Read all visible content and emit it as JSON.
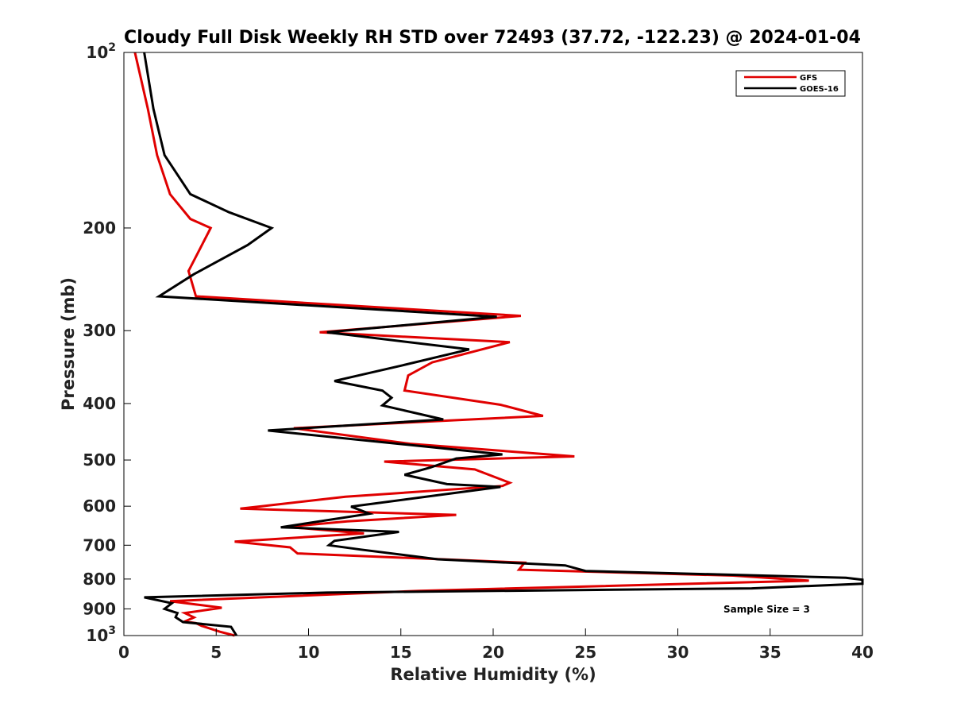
{
  "chart_data": {
    "type": "line",
    "title": "Cloudy Full Disk Weekly RH STD over 72493 (37.72, -122.23) @ 2024-01-04",
    "xlabel": "Relative Humidity (%)",
    "ylabel": "Pressure (mb)",
    "xlim": [
      0,
      40
    ],
    "ylim": [
      100,
      1000
    ],
    "y_scale": "log",
    "y_reversed": true,
    "grid": false,
    "legend_position": "top-right",
    "x_ticks": [
      "0",
      "5",
      "10",
      "15",
      "20",
      "25",
      "30",
      "35",
      "40"
    ],
    "y_ticks": [
      {
        "value": 100,
        "base": "10",
        "exp": "2"
      },
      {
        "value": 200,
        "label": "200"
      },
      {
        "value": 300,
        "label": "300"
      },
      {
        "value": 400,
        "label": "400"
      },
      {
        "value": 500,
        "label": "500"
      },
      {
        "value": 600,
        "label": "600"
      },
      {
        "value": 700,
        "label": "700"
      },
      {
        "value": 800,
        "label": "800"
      },
      {
        "value": 900,
        "label": "900"
      },
      {
        "value": 1000,
        "base": "10",
        "exp": "3"
      }
    ],
    "annotation": "Sample Size = 3",
    "series": [
      {
        "name": "GFS",
        "color": "#e00000",
        "points": [
          [
            0.6,
            100
          ],
          [
            1.3,
            125
          ],
          [
            1.8,
            150
          ],
          [
            2.5,
            175
          ],
          [
            3.6,
            193
          ],
          [
            4.7,
            200
          ],
          [
            3.5,
            237
          ],
          [
            3.9,
            262
          ],
          [
            21.5,
            283
          ],
          [
            10.6,
            302
          ],
          [
            20.9,
            314
          ],
          [
            16.7,
            340
          ],
          [
            15.4,
            358
          ],
          [
            15.2,
            380
          ],
          [
            20.4,
            402
          ],
          [
            22.7,
            420
          ],
          [
            9.2,
            441
          ],
          [
            15.5,
            469
          ],
          [
            24.4,
            493
          ],
          [
            14.1,
            503
          ],
          [
            19.0,
            519
          ],
          [
            20.9,
            547
          ],
          [
            20.5,
            554
          ],
          [
            12.0,
            578
          ],
          [
            6.3,
            606
          ],
          [
            18.0,
            621
          ],
          [
            12.1,
            637
          ],
          [
            8.8,
            651
          ],
          [
            13.0,
            668
          ],
          [
            6.0,
            690
          ],
          [
            9.0,
            706
          ],
          [
            9.4,
            723
          ],
          [
            21.7,
            750
          ],
          [
            21.4,
            771
          ],
          [
            33.0,
            789
          ],
          [
            37.1,
            805
          ],
          [
            16.0,
            838
          ],
          [
            2.5,
            873
          ],
          [
            5.3,
            896
          ],
          [
            3.3,
            915
          ],
          [
            3.8,
            931
          ],
          [
            3.3,
            946
          ],
          [
            3.9,
            952
          ],
          [
            4.2,
            962
          ],
          [
            5.2,
            985
          ],
          [
            6.0,
            1000
          ]
        ]
      },
      {
        "name": "GOES-16",
        "color": "#000000",
        "points": [
          [
            1.1,
            100
          ],
          [
            1.6,
            125
          ],
          [
            2.2,
            150
          ],
          [
            3.6,
            175
          ],
          [
            5.7,
            188
          ],
          [
            8.0,
            200
          ],
          [
            6.7,
            214
          ],
          [
            3.8,
            240
          ],
          [
            1.9,
            262
          ],
          [
            20.2,
            284
          ],
          [
            11.0,
            302
          ],
          [
            18.7,
            323
          ],
          [
            15.1,
            344
          ],
          [
            11.4,
            366
          ],
          [
            14.0,
            380
          ],
          [
            14.5,
            391
          ],
          [
            14.0,
            403
          ],
          [
            17.3,
            426
          ],
          [
            7.8,
            445
          ],
          [
            20.5,
            489
          ],
          [
            18.0,
            497
          ],
          [
            16.6,
            515
          ],
          [
            15.2,
            530
          ],
          [
            17.5,
            550
          ],
          [
            20.4,
            556
          ],
          [
            12.3,
            601
          ],
          [
            13.3,
            618
          ],
          [
            8.5,
            652
          ],
          [
            14.9,
            664
          ],
          [
            11.4,
            688
          ],
          [
            11.1,
            700
          ],
          [
            12.8,
            712
          ],
          [
            17.0,
            740
          ],
          [
            23.9,
            758
          ],
          [
            25.0,
            775
          ],
          [
            39.1,
            796
          ],
          [
            40.0,
            802
          ],
          [
            40.0,
            815
          ],
          [
            34.0,
            830
          ],
          [
            11.0,
            844
          ],
          [
            1.1,
            860
          ],
          [
            2.6,
            880
          ],
          [
            2.2,
            900
          ],
          [
            2.9,
            915
          ],
          [
            2.8,
            930
          ],
          [
            3.2,
            948
          ],
          [
            5.8,
            966
          ],
          [
            6.1,
            1000
          ]
        ]
      }
    ]
  }
}
